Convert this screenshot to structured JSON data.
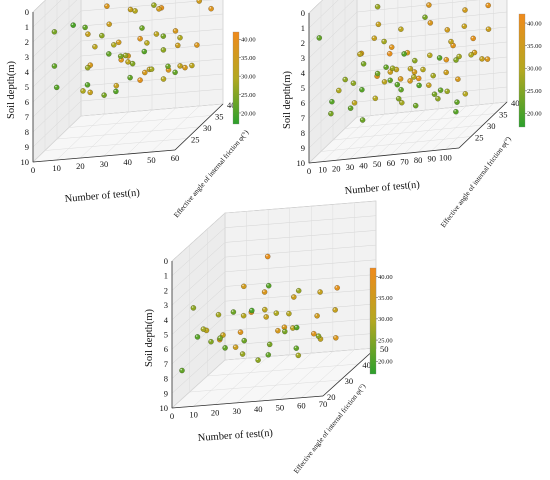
{
  "colors": {
    "low": "#2ca02c",
    "mid": "#b3a821",
    "high": "#f08a1c"
  },
  "chart_data": [
    {
      "type": "scatter",
      "title": "",
      "xlabel": "Number of test(n)",
      "ylabel": "Soil depth(m)",
      "zlabel": "Effective angle of internal friction φ(°)",
      "xlim": [
        0,
        60
      ],
      "ylim": [
        0,
        10
      ],
      "zlim": [
        20,
        40
      ],
      "xticks": [
        0,
        10,
        20,
        30,
        40,
        50,
        60
      ],
      "yticks": [
        0,
        1,
        2,
        3,
        4,
        5,
        6,
        7,
        8,
        9,
        10
      ],
      "zticks": [
        25,
        30,
        35,
        40
      ],
      "colorbar": {
        "min": 17,
        "max": 42,
        "ticks": [
          "20.00",
          "25.00",
          "30.00",
          "35.00",
          "40.00"
        ]
      },
      "points": [
        {
          "x": 3,
          "y": 1.3,
          "z": 36
        },
        {
          "x": 5,
          "y": 2.0,
          "z": 24
        },
        {
          "x": 7,
          "y": 4.0,
          "z": 22
        },
        {
          "x": 9,
          "y": 5.3,
          "z": 21
        },
        {
          "x": 10,
          "y": 3.6,
          "z": 33
        },
        {
          "x": 12,
          "y": 6.8,
          "z": 29
        },
        {
          "x": 14,
          "y": 2.4,
          "z": 37
        },
        {
          "x": 15,
          "y": 4.2,
          "z": 31
        },
        {
          "x": 16,
          "y": 5.0,
          "z": 27
        },
        {
          "x": 18,
          "y": 3.2,
          "z": 34
        },
        {
          "x": 19,
          "y": 6.2,
          "z": 38
        },
        {
          "x": 20,
          "y": 1.6,
          "z": 22
        },
        {
          "x": 21,
          "y": 4.6,
          "z": 35
        },
        {
          "x": 22,
          "y": 7.2,
          "z": 33
        },
        {
          "x": 23,
          "y": 2.8,
          "z": 26
        },
        {
          "x": 24,
          "y": 5.7,
          "z": 36
        },
        {
          "x": 25,
          "y": 3.9,
          "z": 29
        },
        {
          "x": 26,
          "y": 6.5,
          "z": 24
        },
        {
          "x": 27,
          "y": 4.9,
          "z": 38
        },
        {
          "x": 28,
          "y": 2.2,
          "z": 33
        },
        {
          "x": 29,
          "y": 5.4,
          "z": 31
        },
        {
          "x": 30,
          "y": 3.5,
          "z": 22
        },
        {
          "x": 31,
          "y": 6.9,
          "z": 36
        },
        {
          "x": 32,
          "y": 4.4,
          "z": 27
        },
        {
          "x": 33,
          "y": 1.9,
          "z": 30
        },
        {
          "x": 34,
          "y": 5.9,
          "z": 21
        },
        {
          "x": 35,
          "y": 3.1,
          "z": 39
        },
        {
          "x": 36,
          "y": 6.3,
          "z": 33
        },
        {
          "x": 37,
          "y": 4.7,
          "z": 25
        },
        {
          "x": 38,
          "y": 2.6,
          "z": 35
        },
        {
          "x": 39,
          "y": 5.2,
          "z": 22
        },
        {
          "x": 40,
          "y": 7.0,
          "z": 37
        },
        {
          "x": 41,
          "y": 3.7,
          "z": 31
        },
        {
          "x": 42,
          "y": 5.6,
          "z": 28
        },
        {
          "x": 43,
          "y": 2.1,
          "z": 23
        },
        {
          "x": 44,
          "y": 4.3,
          "z": 36
        },
        {
          "x": 45,
          "y": 6.6,
          "z": 30
        },
        {
          "x": 46,
          "y": 3.4,
          "z": 21
        },
        {
          "x": 47,
          "y": 5.0,
          "z": 34
        },
        {
          "x": 48,
          "y": 1.5,
          "z": 38
        },
        {
          "x": 49,
          "y": 4.1,
          "z": 26
        },
        {
          "x": 50,
          "y": 6.1,
          "z": 32
        },
        {
          "x": 51,
          "y": 2.9,
          "z": 24
        },
        {
          "x": 52,
          "y": 5.5,
          "z": 37
        },
        {
          "x": 53,
          "y": 3.8,
          "z": 29
        },
        {
          "x": 54,
          "y": 4.8,
          "z": 23
        },
        {
          "x": 55,
          "y": 2.3,
          "z": 35
        },
        {
          "x": 56,
          "y": 6.0,
          "z": 31
        },
        {
          "x": 57,
          "y": 3.3,
          "z": 38
        },
        {
          "x": 58,
          "y": 5.1,
          "z": 22
        },
        {
          "x": 11,
          "y": 7.5,
          "z": 33
        },
        {
          "x": 17,
          "y": 1.1,
          "z": 20
        },
        {
          "x": 26,
          "y": 7.8,
          "z": 39
        },
        {
          "x": 33,
          "y": 4.0,
          "z": 24
        },
        {
          "x": 44,
          "y": 1.2,
          "z": 27
        },
        {
          "x": 48,
          "y": 6.8,
          "z": 36
        },
        {
          "x": 8,
          "y": 6.1,
          "z": 36
        },
        {
          "x": 38,
          "y": 4.1,
          "z": 30
        },
        {
          "x": 22,
          "y": 5.3,
          "z": 21
        },
        {
          "x": 53,
          "y": 2.0,
          "z": 40
        }
      ]
    },
    {
      "type": "scatter",
      "title": "",
      "xlabel": "Number of test(n)",
      "ylabel": "Soil depth(m)",
      "zlabel": "Effective angle of internal friction φ(°)",
      "xlim": [
        0,
        110
      ],
      "ylim": [
        0,
        10
      ],
      "zlim": [
        20,
        40
      ],
      "xticks": [
        0,
        10,
        20,
        30,
        40,
        50,
        60,
        70,
        80,
        90,
        100
      ],
      "yticks": [
        0,
        1,
        2,
        3,
        4,
        5,
        6,
        7,
        8,
        9,
        10
      ],
      "zticks": [
        25,
        30,
        35,
        40
      ],
      "colorbar": {
        "min": 17,
        "max": 42,
        "ticks": [
          "20.00",
          "25.00",
          "30.00",
          "35.00",
          "40.00"
        ]
      },
      "points": [
        {
          "x": 4,
          "y": 2.0,
          "z": 22
        },
        {
          "x": 6,
          "y": 6.6,
          "z": 29
        },
        {
          "x": 9,
          "y": 7.4,
          "z": 24
        },
        {
          "x": 12,
          "y": 5.1,
          "z": 35
        },
        {
          "x": 15,
          "y": 6.2,
          "z": 21
        },
        {
          "x": 18,
          "y": 4.6,
          "z": 31
        },
        {
          "x": 20,
          "y": 7.0,
          "z": 37
        },
        {
          "x": 22,
          "y": 5.8,
          "z": 26
        },
        {
          "x": 25,
          "y": 3.9,
          "z": 33
        },
        {
          "x": 27,
          "y": 6.9,
          "z": 22
        },
        {
          "x": 29,
          "y": 5.3,
          "z": 38
        },
        {
          "x": 31,
          "y": 7.5,
          "z": 30
        },
        {
          "x": 33,
          "y": 4.3,
          "z": 24
        },
        {
          "x": 35,
          "y": 6.4,
          "z": 34
        },
        {
          "x": 37,
          "y": 5.6,
          "z": 21
        },
        {
          "x": 39,
          "y": 7.2,
          "z": 36
        },
        {
          "x": 41,
          "y": 3.5,
          "z": 28
        },
        {
          "x": 43,
          "y": 6.0,
          "z": 32
        },
        {
          "x": 45,
          "y": 4.9,
          "z": 23
        },
        {
          "x": 47,
          "y": 7.7,
          "z": 39
        },
        {
          "x": 49,
          "y": 5.2,
          "z": 27
        },
        {
          "x": 51,
          "y": 6.7,
          "z": 35
        },
        {
          "x": 53,
          "y": 4.4,
          "z": 22
        },
        {
          "x": 55,
          "y": 5.9,
          "z": 31
        },
        {
          "x": 57,
          "y": 7.0,
          "z": 25
        },
        {
          "x": 59,
          "y": 3.8,
          "z": 37
        },
        {
          "x": 61,
          "y": 6.2,
          "z": 29
        },
        {
          "x": 63,
          "y": 5.5,
          "z": 21
        },
        {
          "x": 65,
          "y": 7.4,
          "z": 33
        },
        {
          "x": 67,
          "y": 4.7,
          "z": 26
        },
        {
          "x": 69,
          "y": 6.5,
          "z": 38
        },
        {
          "x": 71,
          "y": 5.0,
          "z": 30
        },
        {
          "x": 73,
          "y": 7.3,
          "z": 23
        },
        {
          "x": 75,
          "y": 4.1,
          "z": 35
        },
        {
          "x": 77,
          "y": 6.1,
          "z": 28
        },
        {
          "x": 79,
          "y": 5.7,
          "z": 21
        },
        {
          "x": 81,
          "y": 7.6,
          "z": 36
        },
        {
          "x": 83,
          "y": 4.5,
          "z": 32
        },
        {
          "x": 85,
          "y": 6.8,
          "z": 24
        },
        {
          "x": 87,
          "y": 5.4,
          "z": 39
        },
        {
          "x": 89,
          "y": 7.1,
          "z": 27
        },
        {
          "x": 91,
          "y": 3.7,
          "z": 33
        },
        {
          "x": 93,
          "y": 6.3,
          "z": 22
        },
        {
          "x": 95,
          "y": 5.8,
          "z": 35
        },
        {
          "x": 97,
          "y": 7.8,
          "z": 30
        },
        {
          "x": 99,
          "y": 4.8,
          "z": 25
        },
        {
          "x": 101,
          "y": 6.6,
          "z": 37
        },
        {
          "x": 103,
          "y": 5.1,
          "z": 29
        },
        {
          "x": 105,
          "y": 7.2,
          "z": 22
        },
        {
          "x": 107,
          "y": 4.2,
          "z": 34
        },
        {
          "x": 14,
          "y": 7.8,
          "z": 31
        },
        {
          "x": 24,
          "y": 6.0,
          "z": 40
        },
        {
          "x": 34,
          "y": 7.9,
          "z": 23
        },
        {
          "x": 44,
          "y": 5.5,
          "z": 36
        },
        {
          "x": 54,
          "y": 7.7,
          "z": 28
        },
        {
          "x": 64,
          "y": 6.0,
          "z": 22
        },
        {
          "x": 74,
          "y": 5.6,
          "z": 38
        },
        {
          "x": 84,
          "y": 7.4,
          "z": 26
        },
        {
          "x": 94,
          "y": 4.0,
          "z": 21
        },
        {
          "x": 104,
          "y": 6.0,
          "z": 33
        },
        {
          "x": 38,
          "y": 1.0,
          "z": 27
        },
        {
          "x": 58,
          "y": 2.6,
          "z": 37
        },
        {
          "x": 78,
          "y": 1.6,
          "z": 24
        },
        {
          "x": 48,
          "y": 3.2,
          "z": 31
        },
        {
          "x": 88,
          "y": 2.9,
          "z": 35
        },
        {
          "x": 68,
          "y": 3.5,
          "z": 21
        },
        {
          "x": 28,
          "y": 3.0,
          "z": 33
        },
        {
          "x": 98,
          "y": 3.3,
          "z": 39
        },
        {
          "x": 16,
          "y": 5.5,
          "z": 26
        },
        {
          "x": 36,
          "y": 6.6,
          "z": 31
        },
        {
          "x": 56,
          "y": 5.3,
          "z": 22
        },
        {
          "x": 76,
          "y": 6.8,
          "z": 34
        },
        {
          "x": 96,
          "y": 5.0,
          "z": 28
        },
        {
          "x": 106,
          "y": 7.7,
          "z": 21
        },
        {
          "x": 46,
          "y": 7.4,
          "z": 36
        },
        {
          "x": 66,
          "y": 5.9,
          "z": 30
        }
      ]
    },
    {
      "type": "scatter",
      "title": "",
      "xlabel": "Number of test(n)",
      "ylabel": "Soil depth(m)",
      "zlabel": "Effective angle of internal friction φ(°)",
      "xlim": [
        0,
        70
      ],
      "ylim": [
        0,
        10
      ],
      "zlim": [
        20,
        50
      ],
      "xticks": [
        0,
        10,
        20,
        30,
        40,
        50,
        60,
        70
      ],
      "yticks": [
        0,
        1,
        2,
        3,
        4,
        5,
        6,
        7,
        8,
        9,
        10
      ],
      "zticks": [
        20,
        30,
        40,
        50
      ],
      "colorbar": {
        "min": 17,
        "max": 42,
        "ticks": [
          "20.00",
          "25.00",
          "30.00",
          "35.00",
          "40.00"
        ]
      },
      "points": [
        {
          "x": 3,
          "y": 7.7,
          "z": 22
        },
        {
          "x": 5,
          "y": 3.9,
          "z": 26
        },
        {
          "x": 7,
          "y": 6.0,
          "z": 31
        },
        {
          "x": 9,
          "y": 7.2,
          "z": 36
        },
        {
          "x": 11,
          "y": 5.4,
          "z": 21
        },
        {
          "x": 13,
          "y": 6.6,
          "z": 33
        },
        {
          "x": 15,
          "y": 4.7,
          "z": 28
        },
        {
          "x": 17,
          "y": 7.0,
          "z": 38
        },
        {
          "x": 19,
          "y": 5.9,
          "z": 24
        },
        {
          "x": 21,
          "y": 3.6,
          "z": 35
        },
        {
          "x": 23,
          "y": 6.4,
          "z": 22
        },
        {
          "x": 25,
          "y": 5.1,
          "z": 30
        },
        {
          "x": 27,
          "y": 7.4,
          "z": 27
        },
        {
          "x": 29,
          "y": 4.3,
          "z": 37
        },
        {
          "x": 31,
          "y": 6.1,
          "z": 23
        },
        {
          "x": 33,
          "y": 5.6,
          "z": 33
        },
        {
          "x": 35,
          "y": 7.8,
          "z": 26
        },
        {
          "x": 37,
          "y": 3.8,
          "z": 20
        },
        {
          "x": 39,
          "y": 6.7,
          "z": 36
        },
        {
          "x": 41,
          "y": 5.0,
          "z": 29
        },
        {
          "x": 43,
          "y": 7.1,
          "z": 22
        },
        {
          "x": 45,
          "y": 4.5,
          "z": 34
        },
        {
          "x": 47,
          "y": 6.3,
          "z": 31
        },
        {
          "x": 49,
          "y": 5.8,
          "z": 24
        },
        {
          "x": 51,
          "y": 7.5,
          "z": 38
        },
        {
          "x": 53,
          "y": 3.4,
          "z": 27
        },
        {
          "x": 55,
          "y": 6.0,
          "z": 35
        },
        {
          "x": 57,
          "y": 5.3,
          "z": 21
        },
        {
          "x": 59,
          "y": 7.3,
          "z": 32
        },
        {
          "x": 61,
          "y": 4.6,
          "z": 39
        },
        {
          "x": 63,
          "y": 6.5,
          "z": 26
        },
        {
          "x": 65,
          "y": 5.5,
          "z": 33
        },
        {
          "x": 28,
          "y": 2.2,
          "z": 40
        },
        {
          "x": 44,
          "y": 2.3,
          "z": 21
        },
        {
          "x": 8,
          "y": 5.6,
          "z": 28
        },
        {
          "x": 18,
          "y": 7.6,
          "z": 34
        },
        {
          "x": 26,
          "y": 4.1,
          "z": 23
        },
        {
          "x": 36,
          "y": 6.9,
          "z": 36
        },
        {
          "x": 46,
          "y": 5.2,
          "z": 30
        },
        {
          "x": 56,
          "y": 6.8,
          "z": 22
        },
        {
          "x": 62,
          "y": 7.8,
          "z": 37
        },
        {
          "x": 14,
          "y": 6.2,
          "z": 25
        },
        {
          "x": 34,
          "y": 4.9,
          "z": 31
        },
        {
          "x": 52,
          "y": 7.9,
          "z": 28
        },
        {
          "x": 22,
          "y": 5.7,
          "z": 38
        },
        {
          "x": 42,
          "y": 6.6,
          "z": 24
        },
        {
          "x": 58,
          "y": 4.2,
          "z": 33
        }
      ]
    }
  ]
}
